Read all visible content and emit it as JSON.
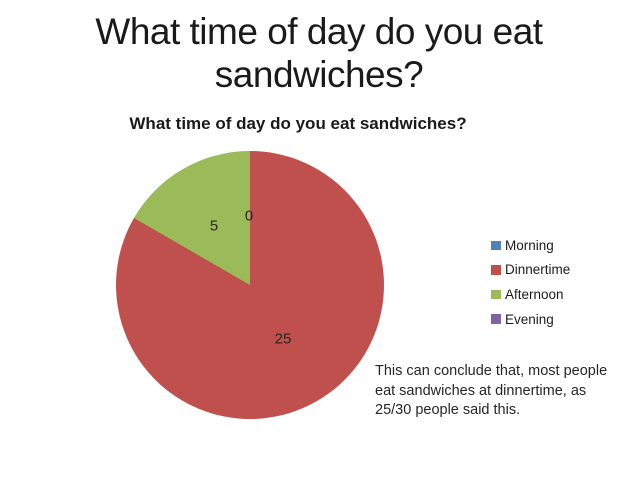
{
  "slide": {
    "background": "#ffffff",
    "title_lines": [
      "What time of day do you eat",
      "sandwiches?"
    ]
  },
  "chart_data": {
    "type": "pie",
    "title": "What time of day do you eat sandwiches?",
    "categories": [
      "Morning",
      "Dinnertime",
      "Afternoon",
      "Evening"
    ],
    "values": [
      0,
      25,
      5,
      0
    ],
    "total_responses": 30,
    "colors": [
      "#4F81BD",
      "#C0504D",
      "#9BBB59",
      "#8064A2"
    ],
    "visible_slice_labels": {
      "morning": "0",
      "dinnertime": "25",
      "afternoon": "5"
    },
    "legend_position": "right",
    "legend": [
      {
        "label": "Morning",
        "color": "#4F81BD"
      },
      {
        "label": "Dinnertime",
        "color": "#C0504D"
      },
      {
        "label": "Afternoon",
        "color": "#9BBB59"
      },
      {
        "label": "Evening",
        "color": "#8064A2"
      }
    ]
  },
  "conclusion": {
    "lines": [
      "This can conclude that, most people",
      "eat sandwiches at dinnertime, as",
      "25/30 people said this."
    ]
  }
}
